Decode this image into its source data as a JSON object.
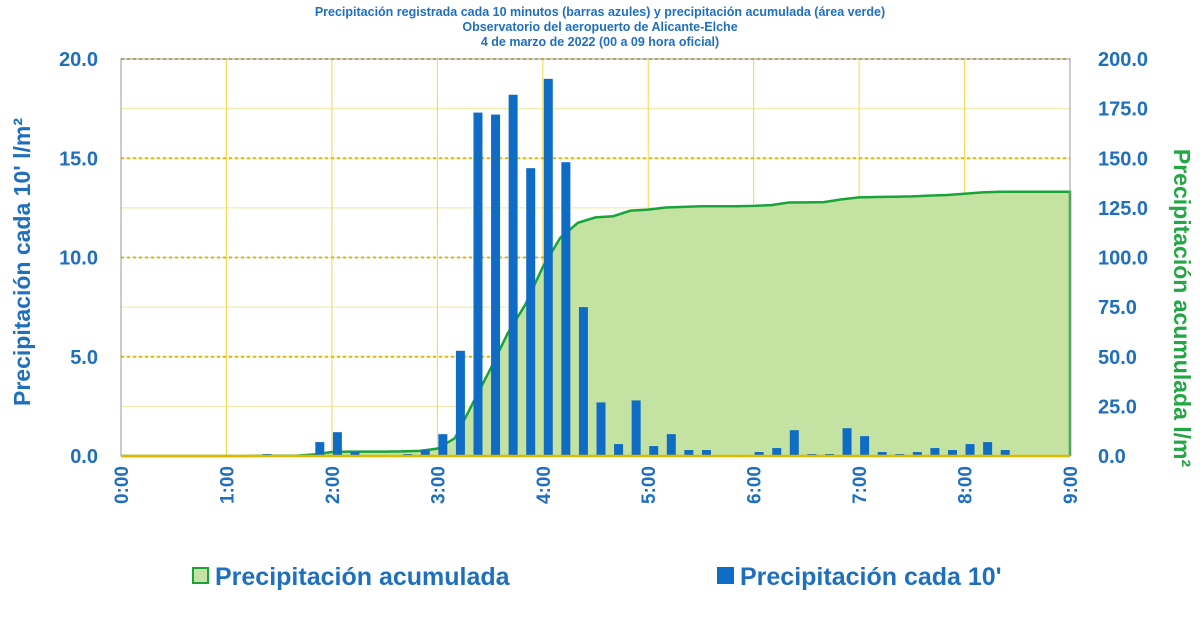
{
  "chart_data": {
    "type": "bar_area",
    "title": [
      "Precipitación  registrada  cada 10 minutos  (barras azules) y precipitación  acumulada (área verde)",
      "Observatorio del aeropuerto de Alicante-Elche",
      "4 de marzo de 2022 (00 a 09 hora oficial)"
    ],
    "y_label": "Precipitación cada 10' l/m²",
    "y2_label": "Precipitación acumulada l/m²",
    "x": [
      0,
      10,
      20,
      30,
      40,
      50,
      60,
      70,
      80,
      90,
      100,
      110,
      120,
      130,
      140,
      150,
      160,
      170,
      180,
      190,
      200,
      210,
      220,
      230,
      240,
      250,
      260,
      270,
      280,
      290,
      300,
      310,
      320,
      330,
      340,
      350,
      360,
      370,
      380,
      390,
      400,
      410,
      420,
      430,
      440,
      450,
      460,
      470,
      480,
      490,
      500,
      510,
      520,
      530,
      540
    ],
    "xlim": [
      0,
      540
    ],
    "xticks": [
      {
        "value": 0,
        "label": "0:00"
      },
      {
        "value": 60,
        "label": "1:00"
      },
      {
        "value": 120,
        "label": "2:00"
      },
      {
        "value": 180,
        "label": "3:00"
      },
      {
        "value": 240,
        "label": "4:00"
      },
      {
        "value": 300,
        "label": "5:00"
      },
      {
        "value": 360,
        "label": "6:00"
      },
      {
        "value": 420,
        "label": "7:00"
      },
      {
        "value": 480,
        "label": "8:00"
      },
      {
        "value": 540,
        "label": "9:00"
      }
    ],
    "ylim": [
      0,
      20
    ],
    "yticks": [
      {
        "value": 0,
        "label": "0.0"
      },
      {
        "value": 5,
        "label": "5.0"
      },
      {
        "value": 10,
        "label": "10.0"
      },
      {
        "value": 15,
        "label": "15.0"
      },
      {
        "value": 20,
        "label": "20.0"
      }
    ],
    "y2lim": [
      0,
      200
    ],
    "y2ticks": [
      {
        "value": 0,
        "label": "0.0"
      },
      {
        "value": 25,
        "label": "25.0"
      },
      {
        "value": 50,
        "label": "50.0"
      },
      {
        "value": 75,
        "label": "75.0"
      },
      {
        "value": 100,
        "label": "100.0"
      },
      {
        "value": 125,
        "label": "125.0"
      },
      {
        "value": 150,
        "label": "150.0"
      },
      {
        "value": 175,
        "label": "175.0"
      },
      {
        "value": 200,
        "label": "200.0"
      }
    ],
    "grid": true,
    "legend_position": "bottom",
    "series": [
      {
        "name": "Precipitación acumulada",
        "type": "area",
        "axis": "y2",
        "color": "#1aa33a",
        "fill": "#c4e3a3",
        "values": [
          0,
          0,
          0,
          0,
          0,
          0,
          0,
          0,
          0.1,
          0.1,
          0.1,
          0.8,
          2.0,
          2.2,
          2.2,
          2.2,
          2.3,
          2.6,
          3.7,
          9.0,
          26.3,
          43.5,
          61.7,
          76.2,
          95.2,
          110.0,
          117.5,
          120.2,
          120.8,
          123.6,
          124.1,
          125.2,
          125.5,
          125.8,
          125.8,
          125.8,
          126.0,
          126.4,
          127.7,
          127.8,
          127.9,
          129.3,
          130.3,
          130.5,
          130.6,
          130.8,
          131.2,
          131.5,
          132.1,
          132.8,
          133.1,
          133.1,
          133.1,
          133.1,
          133.1
        ]
      },
      {
        "name": "Precipitación cada 10'",
        "type": "bar",
        "color": "#0f6cc4",
        "values": [
          0,
          0,
          0,
          0,
          0,
          0,
          0,
          0,
          0.1,
          0,
          0,
          0.7,
          1.2,
          0.2,
          0,
          0,
          0.1,
          0.3,
          1.1,
          5.3,
          17.3,
          17.2,
          18.2,
          14.5,
          19.0,
          14.8,
          7.5,
          2.7,
          0.6,
          2.8,
          0.5,
          1.1,
          0.3,
          0.3,
          0,
          0,
          0.2,
          0.4,
          1.3,
          0.1,
          0.1,
          1.4,
          1.0,
          0.2,
          0.1,
          0.2,
          0.4,
          0.3,
          0.6,
          0.7,
          0.3,
          0,
          0,
          0,
          0
        ]
      }
    ]
  }
}
